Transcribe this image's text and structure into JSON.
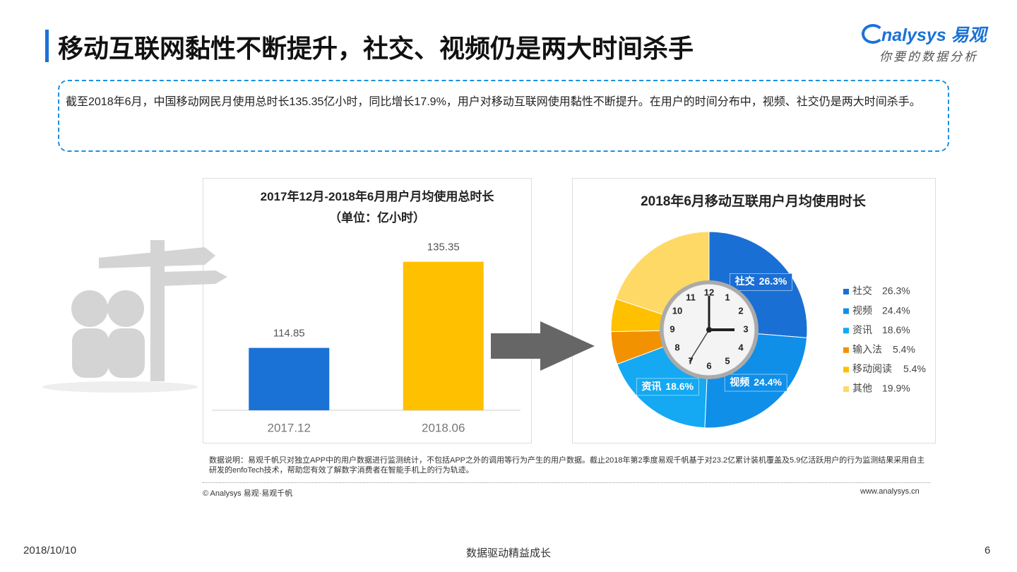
{
  "header": {
    "title": "移动互联网黏性不断提升，社交、视频仍是两大时间杀手",
    "logo_brand": "nalysys 易观",
    "logo_slogan": "你要的数据分析"
  },
  "summary": "截至2018年6月，中国移动网民月使用总时长135.35亿小时，同比增长17.9%，用户对移动互联网使用黏性不断提升。在用户的时间分布中，视频、社交仍是两大时间杀手。",
  "chart_data": [
    {
      "type": "bar",
      "title": "2017年12月-2018年6月用户月均使用总时长（单位：亿小时）",
      "categories": [
        "2017.12",
        "2018.06"
      ],
      "values": [
        114.85,
        135.35
      ],
      "colors": [
        "#1b72d6",
        "#ffc000"
      ],
      "ylim": [
        100,
        140
      ]
    },
    {
      "type": "pie",
      "title": "2018年6月移动互联用户月均使用时长",
      "categories": [
        "社交",
        "视频",
        "资讯",
        "输入法",
        "移动阅读",
        "其他"
      ],
      "values": [
        26.3,
        24.4,
        18.6,
        5.4,
        5.4,
        19.9
      ],
      "value_labels": [
        "26.3%",
        "24.4%",
        "18.6%",
        "5.4%",
        "5.4%",
        "19.9%"
      ],
      "colors": [
        "#1a6fd4",
        "#0f8fe8",
        "#14a9f2",
        "#f39200",
        "#ffc000",
        "#ffd966"
      ],
      "legend": "right"
    }
  ],
  "clock_numbers": [
    "12",
    "1",
    "2",
    "3",
    "4",
    "5",
    "6",
    "7",
    "8",
    "9",
    "10",
    "11"
  ],
  "footnote": "数据说明：易观千帆只对独立APP中的用户数据进行监测统计，不包括APP之外的调用等行为产生的用户数据。截止2018年第2季度易观千帆基于对23.2亿累计装机覆盖及5.9亿活跃用户的行为监测结果采用自主研发的enfoTech技术，帮助您有效了解数字消费者在智能手机上的行为轨迹。",
  "copyright": "© Analysys 易观·易观千帆",
  "website": "www.analysys.cn",
  "footer": {
    "date": "2018/10/10",
    "slogan": "数据驱动精益成长",
    "page": "6"
  }
}
